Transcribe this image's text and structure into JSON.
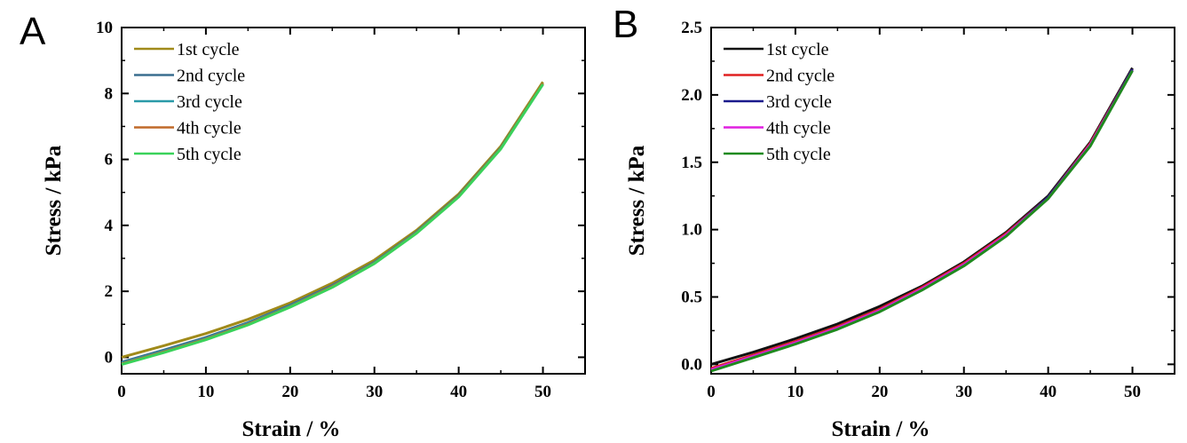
{
  "chart_data": [
    {
      "type": "line",
      "panel_label": "A",
      "xlabel": "Strain / %",
      "ylabel": "Stress / kPa",
      "xlim": [
        0,
        55
      ],
      "ylim": [
        -0.5,
        10
      ],
      "xticks": [
        0,
        10,
        20,
        30,
        40,
        50
      ],
      "yticks": [
        0,
        2,
        4,
        6,
        8,
        10
      ],
      "xtick_labels": [
        "0",
        "10",
        "20",
        "30",
        "40",
        "50"
      ],
      "ytick_labels": [
        "0",
        "2",
        "4",
        "6",
        "8",
        "10"
      ],
      "legend_position": "top-left",
      "grid": false,
      "x": [
        0,
        5,
        10,
        15,
        20,
        25,
        30,
        35,
        40,
        45,
        50
      ],
      "series": [
        {
          "name": "1st cycle",
          "color": "#a08a1a",
          "values": [
            0.0,
            0.35,
            0.72,
            1.15,
            1.65,
            2.25,
            2.95,
            3.85,
            4.95,
            6.4,
            8.35
          ]
        },
        {
          "name": "2nd cycle",
          "color": "#3a6e8f",
          "values": [
            -0.15,
            0.22,
            0.6,
            1.05,
            1.58,
            2.18,
            2.88,
            3.8,
            4.9,
            6.35,
            8.3
          ]
        },
        {
          "name": "3rd cycle",
          "color": "#2a9aa8",
          "values": [
            -0.18,
            0.18,
            0.57,
            1.02,
            1.55,
            2.15,
            2.86,
            3.78,
            4.88,
            6.33,
            8.28
          ]
        },
        {
          "name": "4th cycle",
          "color": "#c06a2a",
          "values": [
            -0.2,
            0.16,
            0.55,
            1.0,
            1.53,
            2.14,
            2.85,
            3.77,
            4.88,
            6.33,
            8.3
          ]
        },
        {
          "name": "5th cycle",
          "color": "#3ad25a",
          "values": [
            -0.22,
            0.14,
            0.53,
            0.98,
            1.52,
            2.12,
            2.84,
            3.76,
            4.86,
            6.32,
            8.28
          ]
        }
      ]
    },
    {
      "type": "line",
      "panel_label": "B",
      "xlabel": "Strain / %",
      "ylabel": "Stress / kPa",
      "xlim": [
        0,
        55
      ],
      "ylim": [
        -0.07,
        2.5
      ],
      "xticks": [
        0,
        10,
        20,
        30,
        40,
        50
      ],
      "yticks": [
        0.0,
        0.5,
        1.0,
        1.5,
        2.0,
        2.5
      ],
      "xtick_labels": [
        "0",
        "10",
        "20",
        "30",
        "40",
        "50"
      ],
      "ytick_labels": [
        "0.0",
        "0.5",
        "1.0",
        "1.5",
        "2.0",
        "2.5"
      ],
      "legend_position": "top-left",
      "grid": false,
      "x": [
        0,
        5,
        10,
        15,
        20,
        25,
        30,
        35,
        40,
        45,
        50
      ],
      "series": [
        {
          "name": "1st cycle",
          "color": "#111111",
          "values": [
            0.0,
            0.09,
            0.19,
            0.3,
            0.43,
            0.58,
            0.76,
            0.98,
            1.25,
            1.65,
            2.2
          ]
        },
        {
          "name": "2nd cycle",
          "color": "#e02020",
          "values": [
            -0.03,
            0.07,
            0.17,
            0.28,
            0.41,
            0.57,
            0.75,
            0.97,
            1.24,
            1.64,
            2.19
          ]
        },
        {
          "name": "3rd cycle",
          "color": "#1a1a8c",
          "values": [
            -0.04,
            0.06,
            0.16,
            0.27,
            0.4,
            0.56,
            0.74,
            0.96,
            1.24,
            1.63,
            2.19
          ]
        },
        {
          "name": "4th cycle",
          "color": "#e020e0",
          "values": [
            -0.04,
            0.06,
            0.16,
            0.27,
            0.4,
            0.56,
            0.74,
            0.96,
            1.23,
            1.63,
            2.18
          ]
        },
        {
          "name": "5th cycle",
          "color": "#1f8a1f",
          "values": [
            -0.05,
            0.05,
            0.15,
            0.26,
            0.39,
            0.55,
            0.73,
            0.95,
            1.23,
            1.62,
            2.18
          ]
        }
      ]
    }
  ]
}
